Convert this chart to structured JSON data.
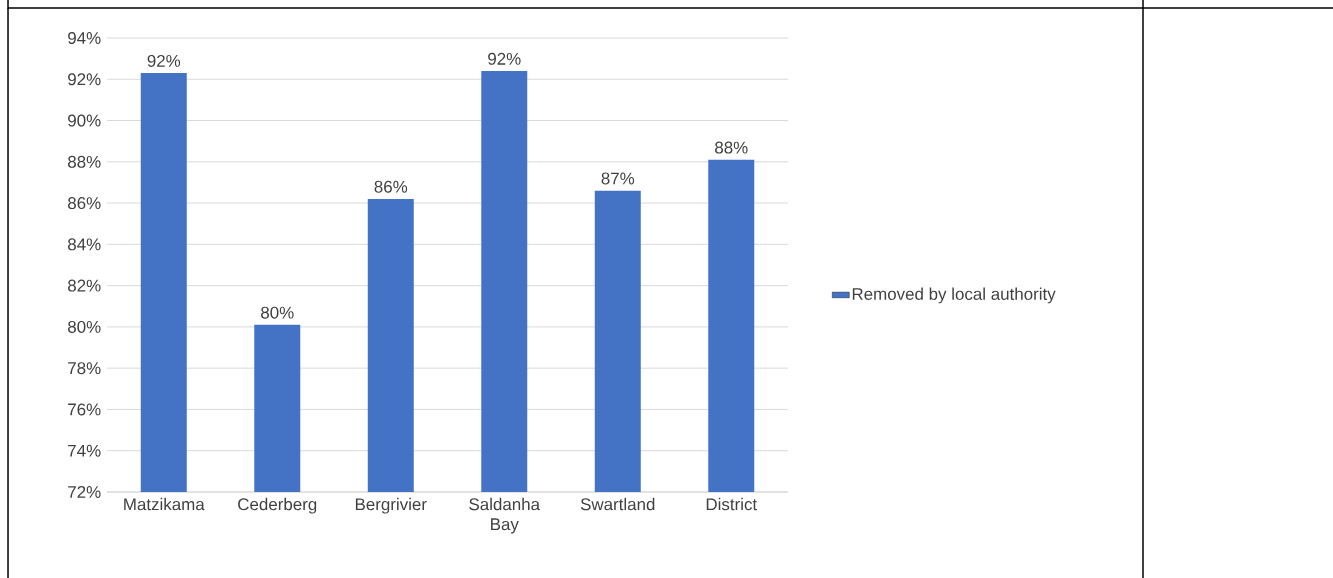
{
  "chart_data": {
    "type": "bar",
    "categories": [
      "Matzikama",
      "Cederberg",
      "Bergrivier",
      "Saldanha Bay",
      "Swartland",
      "District"
    ],
    "series": [
      {
        "name": "Removed by local authority",
        "color": "#4472c4",
        "values": [
          92.3,
          80.1,
          86.2,
          92.4,
          86.6,
          88.1
        ],
        "value_labels": [
          "92%",
          "80%",
          "86%",
          "92%",
          "87%",
          "88%"
        ]
      }
    ],
    "ylim": [
      72,
      94
    ],
    "yticks": [
      {
        "value": 72,
        "label": "72%"
      },
      {
        "value": 74,
        "label": "74%"
      },
      {
        "value": 76,
        "label": "76%"
      },
      {
        "value": 78,
        "label": "78%"
      },
      {
        "value": 80,
        "label": "80%"
      },
      {
        "value": 82,
        "label": "82%"
      },
      {
        "value": 84,
        "label": "84%"
      },
      {
        "value": 86,
        "label": "86%"
      },
      {
        "value": 88,
        "label": "88%"
      },
      {
        "value": 90,
        "label": "90%"
      },
      {
        "value": 92,
        "label": "92%"
      },
      {
        "value": 94,
        "label": "94%"
      }
    ],
    "grid": "y",
    "legend": "right"
  }
}
